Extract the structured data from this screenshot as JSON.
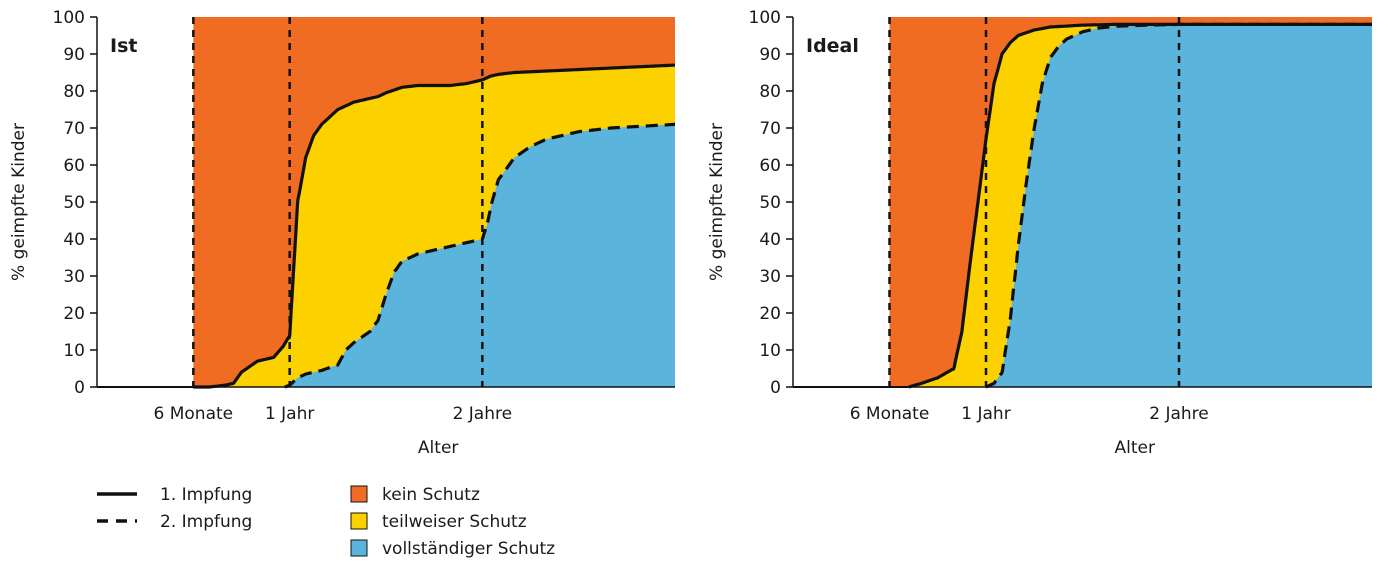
{
  "colors": {
    "kein": "#ef6c22",
    "teilweise": "#fcd100",
    "voll": "#5ab4dc",
    "line": "#111111"
  },
  "legend": {
    "lines": [
      {
        "label": "1. Impfung",
        "style": "solid"
      },
      {
        "label": "2. Impfung",
        "style": "dashed"
      }
    ],
    "areas": [
      {
        "label": "kein Schutz",
        "color_key": "kein"
      },
      {
        "label": "teilweiser Schutz",
        "color_key": "teilweise"
      },
      {
        "label": "vollständiger Schutz",
        "color_key": "voll"
      }
    ]
  },
  "chart_data": [
    {
      "type": "area",
      "panel_label": "Ist",
      "xlabel": "Alter",
      "ylabel": "% geimpfte Kinder",
      "ylim": [
        0,
        100
      ],
      "yticks": [
        0,
        10,
        20,
        30,
        40,
        50,
        60,
        70,
        80,
        90,
        100
      ],
      "xlim": [
        0,
        36
      ],
      "xticks": [
        {
          "value": 6,
          "label": "6 Monate"
        },
        {
          "value": 12,
          "label": "1 Jahr"
        },
        {
          "value": 24,
          "label": "2 Jahre"
        }
      ],
      "vlines": [
        6,
        12,
        24
      ],
      "grid": false,
      "series": [
        {
          "name": "1. Impfung",
          "style": "solid",
          "x": [
            6,
            7,
            8,
            8.5,
            9,
            10,
            11,
            11.6,
            12,
            12.5,
            13,
            13.5,
            14,
            15,
            16,
            17,
            17.5,
            18,
            19,
            20,
            21,
            22,
            23,
            24,
            24.5,
            25,
            26,
            27,
            28,
            30,
            32,
            34,
            36
          ],
          "y": [
            0,
            0,
            0.5,
            1,
            4,
            7,
            8,
            11,
            14,
            50,
            62,
            68,
            71,
            75,
            77,
            78,
            78.5,
            79.5,
            81,
            81.5,
            81.5,
            81.5,
            82,
            83,
            84,
            84.5,
            85,
            85.2,
            85.4,
            85.8,
            86.2,
            86.6,
            87
          ]
        },
        {
          "name": "2. Impfung",
          "style": "dashed",
          "x": [
            11.7,
            12,
            12.5,
            13,
            14,
            15,
            15.5,
            16,
            17,
            17.5,
            18,
            18.5,
            19,
            20,
            21,
            22,
            23,
            24,
            24.3,
            24.6,
            25,
            26,
            27,
            28,
            29,
            30,
            32,
            34,
            36
          ],
          "y": [
            0,
            0.5,
            2.5,
            3.5,
            4.5,
            6,
            10,
            12,
            15,
            18,
            25,
            31,
            34,
            36,
            37,
            38,
            39,
            40,
            44,
            50,
            56,
            62,
            65,
            67,
            68,
            69,
            70,
            70.5,
            71
          ]
        }
      ]
    },
    {
      "type": "area",
      "panel_label": "Ideal",
      "xlabel": "Alter",
      "ylabel": "% geimpfte Kinder",
      "ylim": [
        0,
        100
      ],
      "yticks": [
        0,
        10,
        20,
        30,
        40,
        50,
        60,
        70,
        80,
        90,
        100
      ],
      "xlim": [
        0,
        36
      ],
      "xticks": [
        {
          "value": 6,
          "label": "6 Monate"
        },
        {
          "value": 12,
          "label": "1 Jahr"
        },
        {
          "value": 24,
          "label": "2 Jahre"
        }
      ],
      "vlines": [
        6,
        12,
        24
      ],
      "grid": false,
      "series": [
        {
          "name": "1. Impfung",
          "style": "solid",
          "x": [
            7.2,
            8,
            9,
            10,
            10.5,
            11,
            11.5,
            12,
            12.5,
            13,
            13.5,
            14,
            15,
            16,
            18,
            20,
            24,
            30,
            36
          ],
          "y": [
            0,
            1,
            2.5,
            5,
            15,
            33,
            50,
            67,
            82,
            90,
            93,
            95,
            96.5,
            97.3,
            97.8,
            98,
            98,
            98,
            98
          ]
        },
        {
          "name": "2. Impfung",
          "style": "dashed",
          "x": [
            12,
            12.5,
            13,
            13.5,
            14,
            14.5,
            15,
            15.5,
            16,
            16.5,
            17,
            18,
            19,
            20,
            22,
            24,
            30,
            36
          ],
          "y": [
            0,
            1,
            4,
            18,
            38,
            55,
            70,
            82,
            89,
            92,
            94,
            96,
            97,
            97.5,
            97.8,
            98,
            98,
            98
          ]
        }
      ]
    }
  ]
}
